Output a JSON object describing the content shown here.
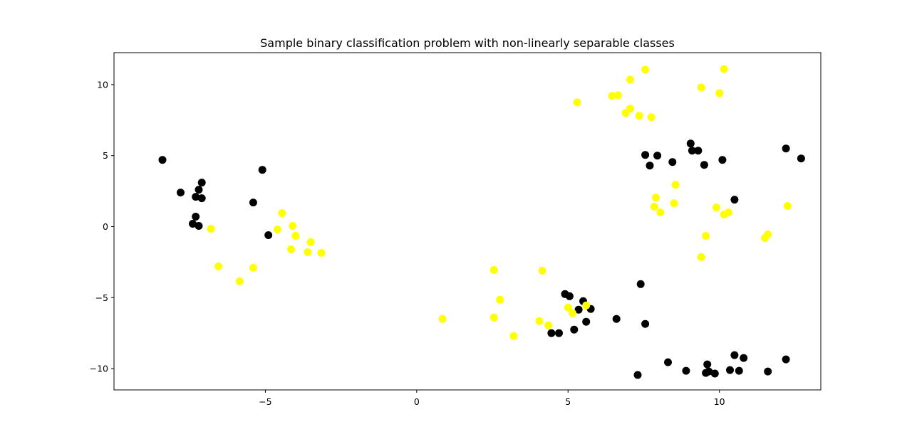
{
  "chart_data": {
    "type": "scatter",
    "title": "Sample binary classification problem with non-linearly separable classes",
    "xlabel": "",
    "ylabel": "",
    "xlim": [
      -10.0,
      13.35
    ],
    "ylim": [
      -11.5,
      12.25
    ],
    "xticks": [
      -5,
      0,
      5,
      10
    ],
    "yticks": [
      -10,
      -5,
      0,
      5,
      10
    ],
    "xtick_labels": [
      "−5",
      "0",
      "5",
      "10"
    ],
    "ytick_labels": [
      "−10",
      "−5",
      "0",
      "5",
      "10"
    ],
    "grid": false,
    "legend": "none",
    "series": [
      {
        "color": "#000000",
        "points": [
          [
            -8.4,
            4.7
          ],
          [
            -7.8,
            2.4
          ],
          [
            -7.1,
            3.1
          ],
          [
            -7.2,
            2.6
          ],
          [
            -7.3,
            2.1
          ],
          [
            -7.1,
            2.0
          ],
          [
            -7.3,
            0.7
          ],
          [
            -7.4,
            0.2
          ],
          [
            -7.2,
            0.05
          ],
          [
            -5.1,
            4.0
          ],
          [
            -5.4,
            1.7
          ],
          [
            -4.9,
            -0.6
          ],
          [
            4.9,
            -4.75
          ],
          [
            5.05,
            -4.9
          ],
          [
            5.5,
            -5.25
          ],
          [
            5.35,
            -5.85
          ],
          [
            5.75,
            -5.8
          ],
          [
            5.6,
            -6.7
          ],
          [
            5.2,
            -7.25
          ],
          [
            4.45,
            -7.5
          ],
          [
            4.7,
            -7.5
          ],
          [
            6.6,
            -6.5
          ],
          [
            7.4,
            -4.05
          ],
          [
            7.55,
            -6.85
          ],
          [
            7.55,
            5.05
          ],
          [
            7.95,
            5.0
          ],
          [
            7.7,
            4.3
          ],
          [
            8.45,
            4.55
          ],
          [
            9.05,
            5.85
          ],
          [
            9.1,
            5.35
          ],
          [
            9.3,
            5.35
          ],
          [
            9.5,
            4.35
          ],
          [
            10.1,
            4.7
          ],
          [
            10.5,
            1.9
          ],
          [
            12.2,
            5.5
          ],
          [
            12.7,
            4.8
          ],
          [
            7.3,
            -10.45
          ],
          [
            8.3,
            -9.55
          ],
          [
            8.9,
            -10.15
          ],
          [
            9.55,
            -10.3
          ],
          [
            9.6,
            -9.7
          ],
          [
            9.65,
            -10.2
          ],
          [
            9.85,
            -10.35
          ],
          [
            10.35,
            -10.1
          ],
          [
            10.5,
            -9.05
          ],
          [
            10.65,
            -10.15
          ],
          [
            10.8,
            -9.25
          ],
          [
            11.6,
            -10.2
          ],
          [
            12.2,
            -9.35
          ]
        ]
      },
      {
        "color": "#ffff00",
        "points": [
          [
            -6.8,
            -0.15
          ],
          [
            -6.55,
            -2.8
          ],
          [
            -5.85,
            -3.85
          ],
          [
            -5.4,
            -2.9
          ],
          [
            -4.6,
            -0.2
          ],
          [
            -4.45,
            0.95
          ],
          [
            -4.1,
            0.05
          ],
          [
            -4.0,
            -0.65
          ],
          [
            -4.15,
            -1.6
          ],
          [
            -3.6,
            -1.8
          ],
          [
            -3.5,
            -1.1
          ],
          [
            -3.15,
            -1.85
          ],
          [
            0.85,
            -6.5
          ],
          [
            2.55,
            -3.05
          ],
          [
            2.55,
            -6.4
          ],
          [
            2.75,
            -5.15
          ],
          [
            3.2,
            -7.7
          ],
          [
            4.15,
            -3.1
          ],
          [
            4.05,
            -6.65
          ],
          [
            4.35,
            -6.95
          ],
          [
            5.0,
            -5.7
          ],
          [
            5.15,
            -6.1
          ],
          [
            5.6,
            -5.55
          ],
          [
            5.3,
            8.75
          ],
          [
            6.45,
            9.2
          ],
          [
            6.65,
            9.25
          ],
          [
            6.9,
            8.0
          ],
          [
            7.05,
            10.35
          ],
          [
            7.05,
            8.3
          ],
          [
            7.35,
            7.8
          ],
          [
            7.55,
            11.05
          ],
          [
            7.75,
            7.7
          ],
          [
            9.4,
            9.8
          ],
          [
            10.0,
            9.4
          ],
          [
            10.15,
            11.1
          ],
          [
            7.85,
            1.4
          ],
          [
            7.9,
            2.05
          ],
          [
            8.05,
            1.0
          ],
          [
            8.5,
            1.65
          ],
          [
            8.55,
            2.95
          ],
          [
            9.4,
            -2.15
          ],
          [
            9.55,
            -0.65
          ],
          [
            9.9,
            1.35
          ],
          [
            10.15,
            0.85
          ],
          [
            10.3,
            1.0
          ],
          [
            11.5,
            -0.8
          ],
          [
            11.6,
            -0.55
          ],
          [
            12.25,
            1.45
          ]
        ]
      }
    ]
  }
}
